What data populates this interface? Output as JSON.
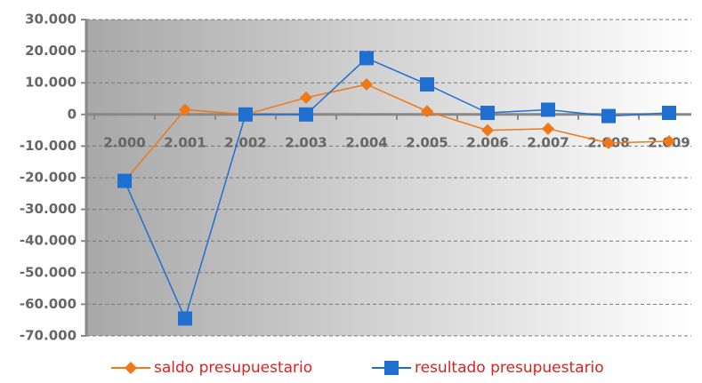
{
  "chart_data": {
    "type": "line",
    "categories": [
      "2.000",
      "2.001",
      "2.002",
      "2.003",
      "2.004",
      "2.005",
      "2.006",
      "2.007",
      "2.008",
      "2.009"
    ],
    "series": [
      {
        "name": "saldo presupuestario",
        "color": "#f07818",
        "marker": "diamond",
        "values": [
          -21000,
          1500,
          0,
          5300,
          9500,
          1000,
          -5000,
          -4500,
          -9000,
          -8500
        ]
      },
      {
        "name": "resultado presupuestario",
        "color": "#1f6fd0",
        "marker": "square",
        "values": [
          -21000,
          -64500,
          0,
          0,
          17800,
          9500,
          500,
          1500,
          -500,
          500
        ]
      }
    ],
    "ylim": [
      -70000,
      30000
    ],
    "yticks": [
      {
        "value": -70000,
        "label": "-70.000"
      },
      {
        "value": -60000,
        "label": "-60.000"
      },
      {
        "value": -50000,
        "label": "-50.000"
      },
      {
        "value": -40000,
        "label": "-40.000"
      },
      {
        "value": -30000,
        "label": "-30.000"
      },
      {
        "value": -20000,
        "label": "-20.000"
      },
      {
        "value": -10000,
        "label": "-10.000"
      },
      0,
      {
        "value": 10000,
        "label": "10.000"
      },
      {
        "value": 20000,
        "label": "20.000"
      },
      {
        "value": 30000,
        "label": "30.000"
      }
    ],
    "grid": true
  }
}
